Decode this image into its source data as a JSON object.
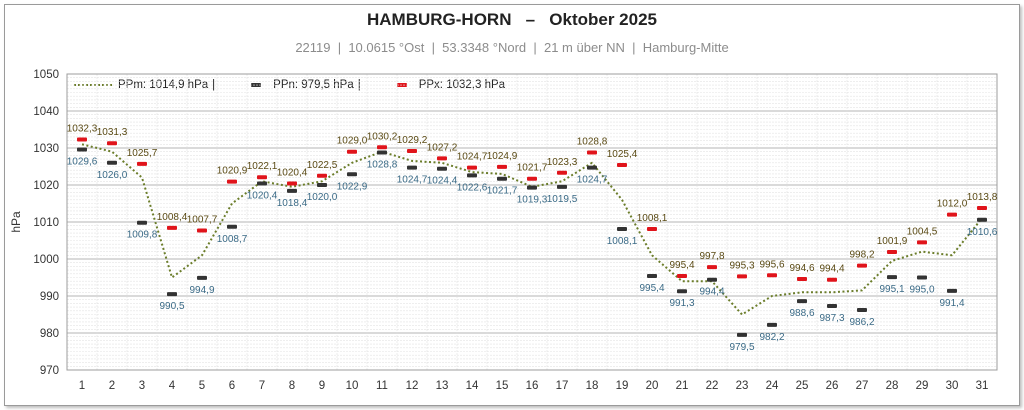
{
  "header": {
    "title": "HAMBURG-HORN   –   Oktober 2025",
    "subtitle": "22119  |  10.0615 °Ost  |  53.3348 °Nord  |  21 m über NN  |  Hamburg-Mitte"
  },
  "legend": {
    "mean": "PPm: 1014,9 hPa",
    "min": "PPn: 979,5 hPa",
    "max": "PPx: 1032,3 hPa",
    "sep": "|"
  },
  "colors": {
    "mean_line": "#6b7d2a",
    "min_marker": "#333333",
    "max_marker": "#e0141b",
    "max_label": "#5a4a14",
    "min_label": "#3a6a86",
    "grid": "#c8c8c8"
  },
  "chart_data": {
    "type": "line",
    "ylabel": "hPa",
    "ylim": [
      970,
      1050
    ],
    "yticks": [
      970,
      980,
      990,
      1000,
      1010,
      1020,
      1030,
      1040,
      1050
    ],
    "x": [
      1,
      2,
      3,
      4,
      5,
      6,
      7,
      8,
      9,
      10,
      11,
      12,
      13,
      14,
      15,
      16,
      17,
      18,
      19,
      20,
      21,
      22,
      23,
      24,
      25,
      26,
      27,
      28,
      29,
      30,
      31
    ],
    "grid": true,
    "legend_position": "top-left",
    "series": [
      {
        "name": "PPm",
        "style": "dotted-line",
        "values": [
          1031.0,
          1029.0,
          1022.0,
          995.0,
          1001.0,
          1015.0,
          1021.0,
          1019.5,
          1021.0,
          1026.0,
          1029.0,
          1026.5,
          1026.0,
          1023.5,
          1023.0,
          1019.5,
          1021.0,
          1026.0,
          1016.0,
          1001.0,
          994.0,
          994.0,
          985.0,
          990.0,
          991.0,
          991.0,
          991.5,
          999.5,
          1002.0,
          1001.0,
          1011.0
        ]
      },
      {
        "name": "PPn",
        "style": "marker",
        "values": [
          1029.6,
          1026.0,
          1009.8,
          990.5,
          994.9,
          1008.7,
          1020.4,
          1018.4,
          1020.0,
          1022.9,
          1028.8,
          1024.7,
          1024.4,
          1022.6,
          1021.7,
          1019.3,
          1019.5,
          1024.7,
          1008.1,
          995.4,
          991.3,
          994.4,
          979.5,
          982.2,
          988.6,
          987.3,
          986.2,
          995.1,
          995.0,
          991.4,
          1010.6
        ],
        "labels": [
          "1029,6",
          "1026,0",
          "1009,8",
          "990,5",
          "994,9",
          "1008,7",
          "1020,4",
          "1018,4",
          "1020,0",
          "1022,9",
          "1028,8",
          "1024,7",
          "1024,4",
          "1022,6",
          "1021,7",
          "1019,3",
          "1019,5",
          "1024,7",
          "1008,1",
          "995,4",
          "991,3",
          "994,4",
          "979,5",
          "982,2",
          "988,6",
          "987,3",
          "986,2",
          "995,1",
          "995,0",
          "991,4",
          "1010,6"
        ]
      },
      {
        "name": "PPx",
        "style": "marker",
        "values": [
          1032.3,
          1031.3,
          1025.7,
          1008.4,
          1007.7,
          1020.9,
          1022.1,
          1020.4,
          1022.5,
          1029.0,
          1030.2,
          1029.2,
          1027.2,
          1024.7,
          1024.9,
          1021.7,
          1023.3,
          1028.8,
          1025.4,
          1008.1,
          995.4,
          997.8,
          995.3,
          995.6,
          994.6,
          994.4,
          998.2,
          1001.9,
          1004.5,
          1012.0,
          1013.8
        ],
        "labels": [
          "1032,3",
          "1031,3",
          "1025,7",
          "1008,4",
          "1007,7",
          "1020,9",
          "1022,1",
          "1020,4",
          "1022,5",
          "1029,0",
          "1030,2",
          "1029,2",
          "1027,2",
          "1024,7",
          "1024,9",
          "1021,7",
          "1023,3",
          "1028,8",
          "1025,4",
          "1008,1",
          "995,4",
          "997,8",
          "995,3",
          "995,6",
          "994,6",
          "994,4",
          "998,2",
          "1001,9",
          "1004,5",
          "1012,0",
          "1013,8"
        ]
      }
    ]
  }
}
